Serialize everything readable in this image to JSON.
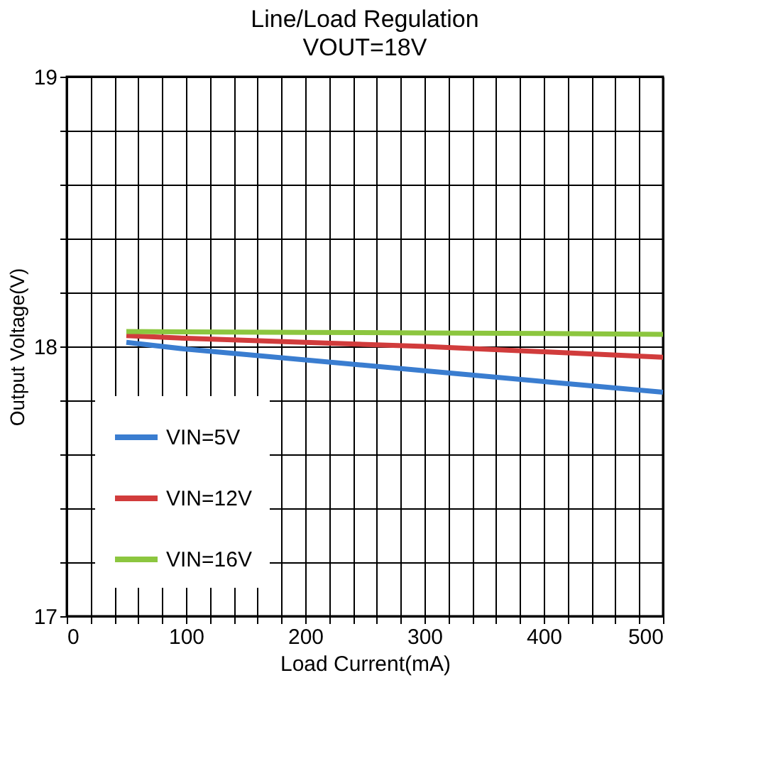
{
  "chart_data": {
    "type": "line",
    "title": "Line/Load Regulation",
    "subtitle": "VOUT=18V",
    "xlabel": "Load Current(mA)",
    "ylabel": "Output Voltage(V)",
    "x": [
      50,
      100,
      200,
      300,
      400,
      500
    ],
    "series": [
      {
        "name": "VIN=5V",
        "color": "#3a7dd0",
        "values": [
          18.015,
          17.99,
          17.95,
          17.91,
          17.87,
          17.83
        ]
      },
      {
        "name": "VIN=12V",
        "color": "#d13c3c",
        "values": [
          18.04,
          18.03,
          18.015,
          18.0,
          17.98,
          17.96
        ]
      },
      {
        "name": "VIN=16V",
        "color": "#8cc63f",
        "values": [
          18.055,
          18.054,
          18.052,
          18.05,
          18.048,
          18.045
        ]
      }
    ],
    "xlim": [
      0,
      500
    ],
    "ylim": [
      17,
      19
    ],
    "xticks": [
      0,
      {
        "value": 20,
        "label": null
      },
      {
        "value": 40,
        "label": null
      },
      {
        "value": 60,
        "label": null
      },
      {
        "value": 80,
        "label": null
      },
      100,
      {
        "value": 120,
        "label": null
      },
      {
        "value": 140,
        "label": null
      },
      {
        "value": 160,
        "label": null
      },
      {
        "value": 180,
        "label": null
      },
      200,
      {
        "value": 220,
        "label": null
      },
      {
        "value": 240,
        "label": null
      },
      {
        "value": 260,
        "label": null
      },
      {
        "value": 280,
        "label": null
      },
      300,
      {
        "value": 320,
        "label": null
      },
      {
        "value": 340,
        "label": null
      },
      {
        "value": 360,
        "label": null
      },
      {
        "value": 380,
        "label": null
      },
      400,
      {
        "value": 420,
        "label": null
      },
      {
        "value": 440,
        "label": null
      },
      {
        "value": 460,
        "label": null
      },
      {
        "value": 480,
        "label": null
      },
      500
    ],
    "yticks": [
      17,
      {
        "value": 17.2,
        "label": null
      },
      {
        "value": 17.4,
        "label": null
      },
      {
        "value": 17.6,
        "label": null
      },
      {
        "value": 17.8,
        "label": null
      },
      18,
      {
        "value": 18.2,
        "label": null
      },
      {
        "value": 18.4,
        "label": null
      },
      {
        "value": 18.6,
        "label": null
      },
      {
        "value": 18.8,
        "label": null
      },
      19
    ],
    "grid": true,
    "legend": "bottom left",
    "line_style": "solid",
    "marker": "none"
  }
}
